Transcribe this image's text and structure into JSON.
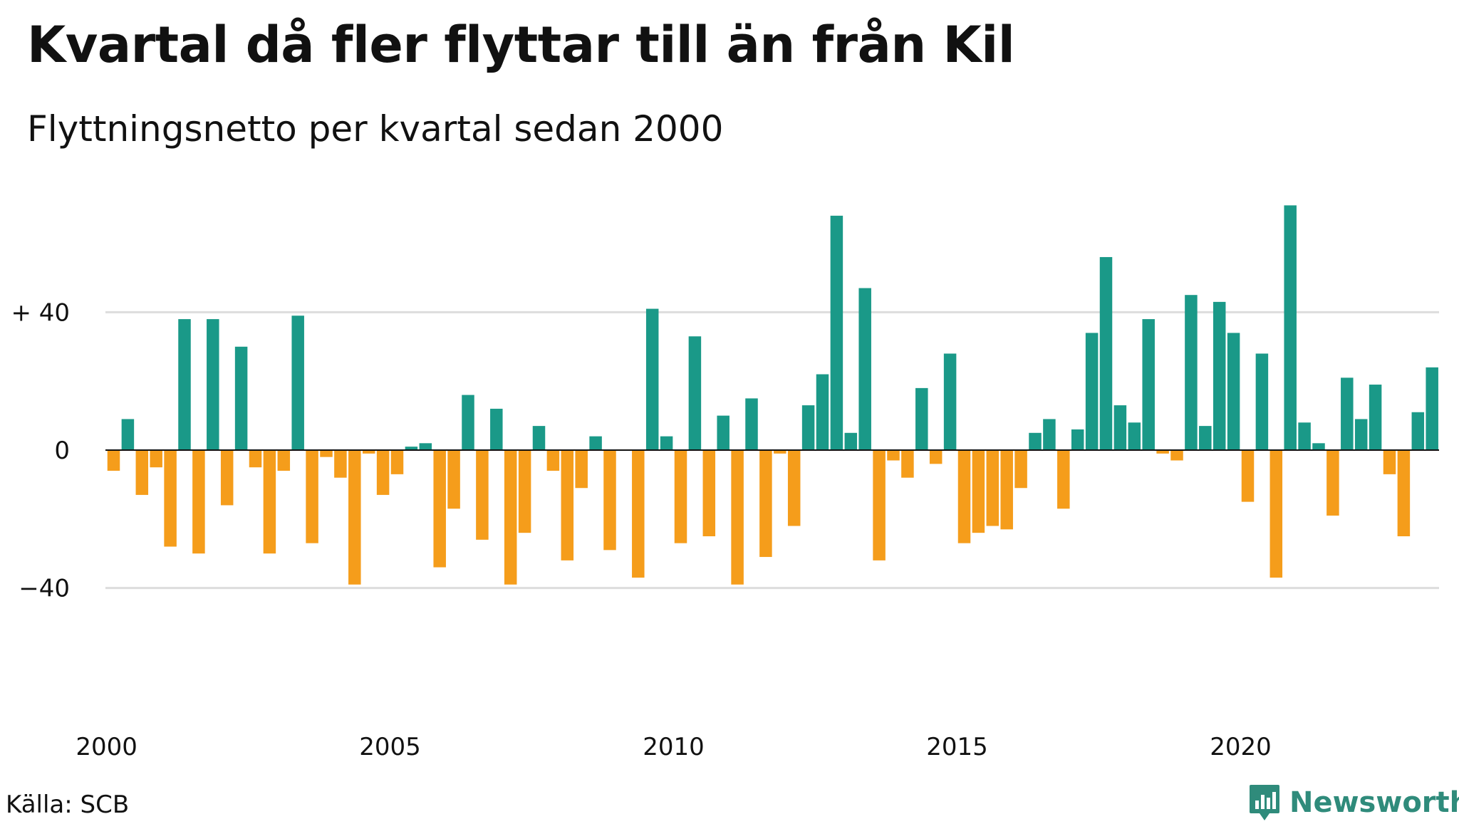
{
  "title": "Kvartal då fler flyttar till än från Kil",
  "subtitle": "Flyttningsnetto per kvartal sedan 2000",
  "source": "Källa: SCB",
  "brand": "Newsworthy",
  "colors": {
    "positive": "#1a9988",
    "negative": "#f59d1b",
    "grid": "#dddddd",
    "brand": "#2f8b7b"
  },
  "chart_data": {
    "type": "bar",
    "xlabel": "",
    "ylabel": "",
    "ylim": [
      -60,
      72
    ],
    "y_ticks": [
      {
        "value": 40,
        "label": "+ 40"
      },
      {
        "value": 0,
        "label": "0"
      },
      {
        "value": -40,
        "label": "−40"
      }
    ],
    "x_ticks": [
      "2000",
      "2005",
      "2010",
      "2015",
      "2020"
    ],
    "grid": true,
    "start_year": 2000,
    "categories": [
      "2000 K1",
      "2000 K2",
      "2000 K3",
      "2000 K4",
      "2001 K1",
      "2001 K2",
      "2001 K3",
      "2001 K4",
      "2002 K1",
      "2002 K2",
      "2002 K3",
      "2002 K4",
      "2003 K1",
      "2003 K2",
      "2003 K3",
      "2003 K4",
      "2004 K1",
      "2004 K2",
      "2004 K3",
      "2004 K4",
      "2005 K1",
      "2005 K2",
      "2005 K3",
      "2005 K4",
      "2006 K1",
      "2006 K2",
      "2006 K3",
      "2006 K4",
      "2007 K1",
      "2007 K2",
      "2007 K3",
      "2007 K4",
      "2008 K1",
      "2008 K2",
      "2008 K3",
      "2008 K4",
      "2009 K1",
      "2009 K2",
      "2009 K3",
      "2009 K4",
      "2010 K1",
      "2010 K2",
      "2010 K3",
      "2010 K4",
      "2011 K1",
      "2011 K2",
      "2011 K3",
      "2011 K4",
      "2012 K1",
      "2012 K2",
      "2012 K3",
      "2012 K4",
      "2013 K1",
      "2013 K2",
      "2013 K3",
      "2013 K4",
      "2014 K1",
      "2014 K2",
      "2014 K3",
      "2014 K4",
      "2015 K1",
      "2015 K2",
      "2015 K3",
      "2015 K4",
      "2016 K1",
      "2016 K2",
      "2016 K3",
      "2016 K4",
      "2017 K1",
      "2017 K2",
      "2017 K3",
      "2017 K4",
      "2018 K1",
      "2018 K2",
      "2018 K3",
      "2018 K4",
      "2019 K1",
      "2019 K2",
      "2019 K3",
      "2019 K4",
      "2020 K1",
      "2020 K2",
      "2020 K3",
      "2020 K4",
      "2021 K1",
      "2021 K2",
      "2021 K3",
      "2021 K4",
      "2022 K1",
      "2022 K2",
      "2022 K3",
      "2022 K4",
      "2023 K1",
      "2023 K2",
      "2023 K3",
      "2023 K4"
    ],
    "values": [
      -6,
      9,
      -13,
      -5,
      -28,
      38,
      -30,
      38,
      -16,
      30,
      -5,
      -30,
      -6,
      39,
      -27,
      -2,
      -8,
      -39,
      -1,
      -13,
      -7,
      1,
      2,
      -34,
      -17,
      16,
      -26,
      12,
      -39,
      -24,
      7,
      -6,
      -32,
      -11,
      4,
      -29,
      0,
      -37,
      41,
      4,
      -27,
      33,
      -25,
      10,
      -39,
      15,
      -31,
      -1,
      -22,
      13,
      22,
      68,
      5,
      47,
      -32,
      -3,
      -8,
      18,
      -4,
      28,
      -27,
      -24,
      -22,
      -23,
      -11,
      5,
      9,
      -17,
      6,
      34,
      56,
      13,
      8,
      38,
      -1,
      -3,
      45,
      7,
      43,
      34,
      -15,
      28,
      -37,
      71,
      8,
      2,
      -19,
      21,
      9,
      19,
      -7,
      -25,
      11,
      24,
      0,
      0
    ]
  }
}
